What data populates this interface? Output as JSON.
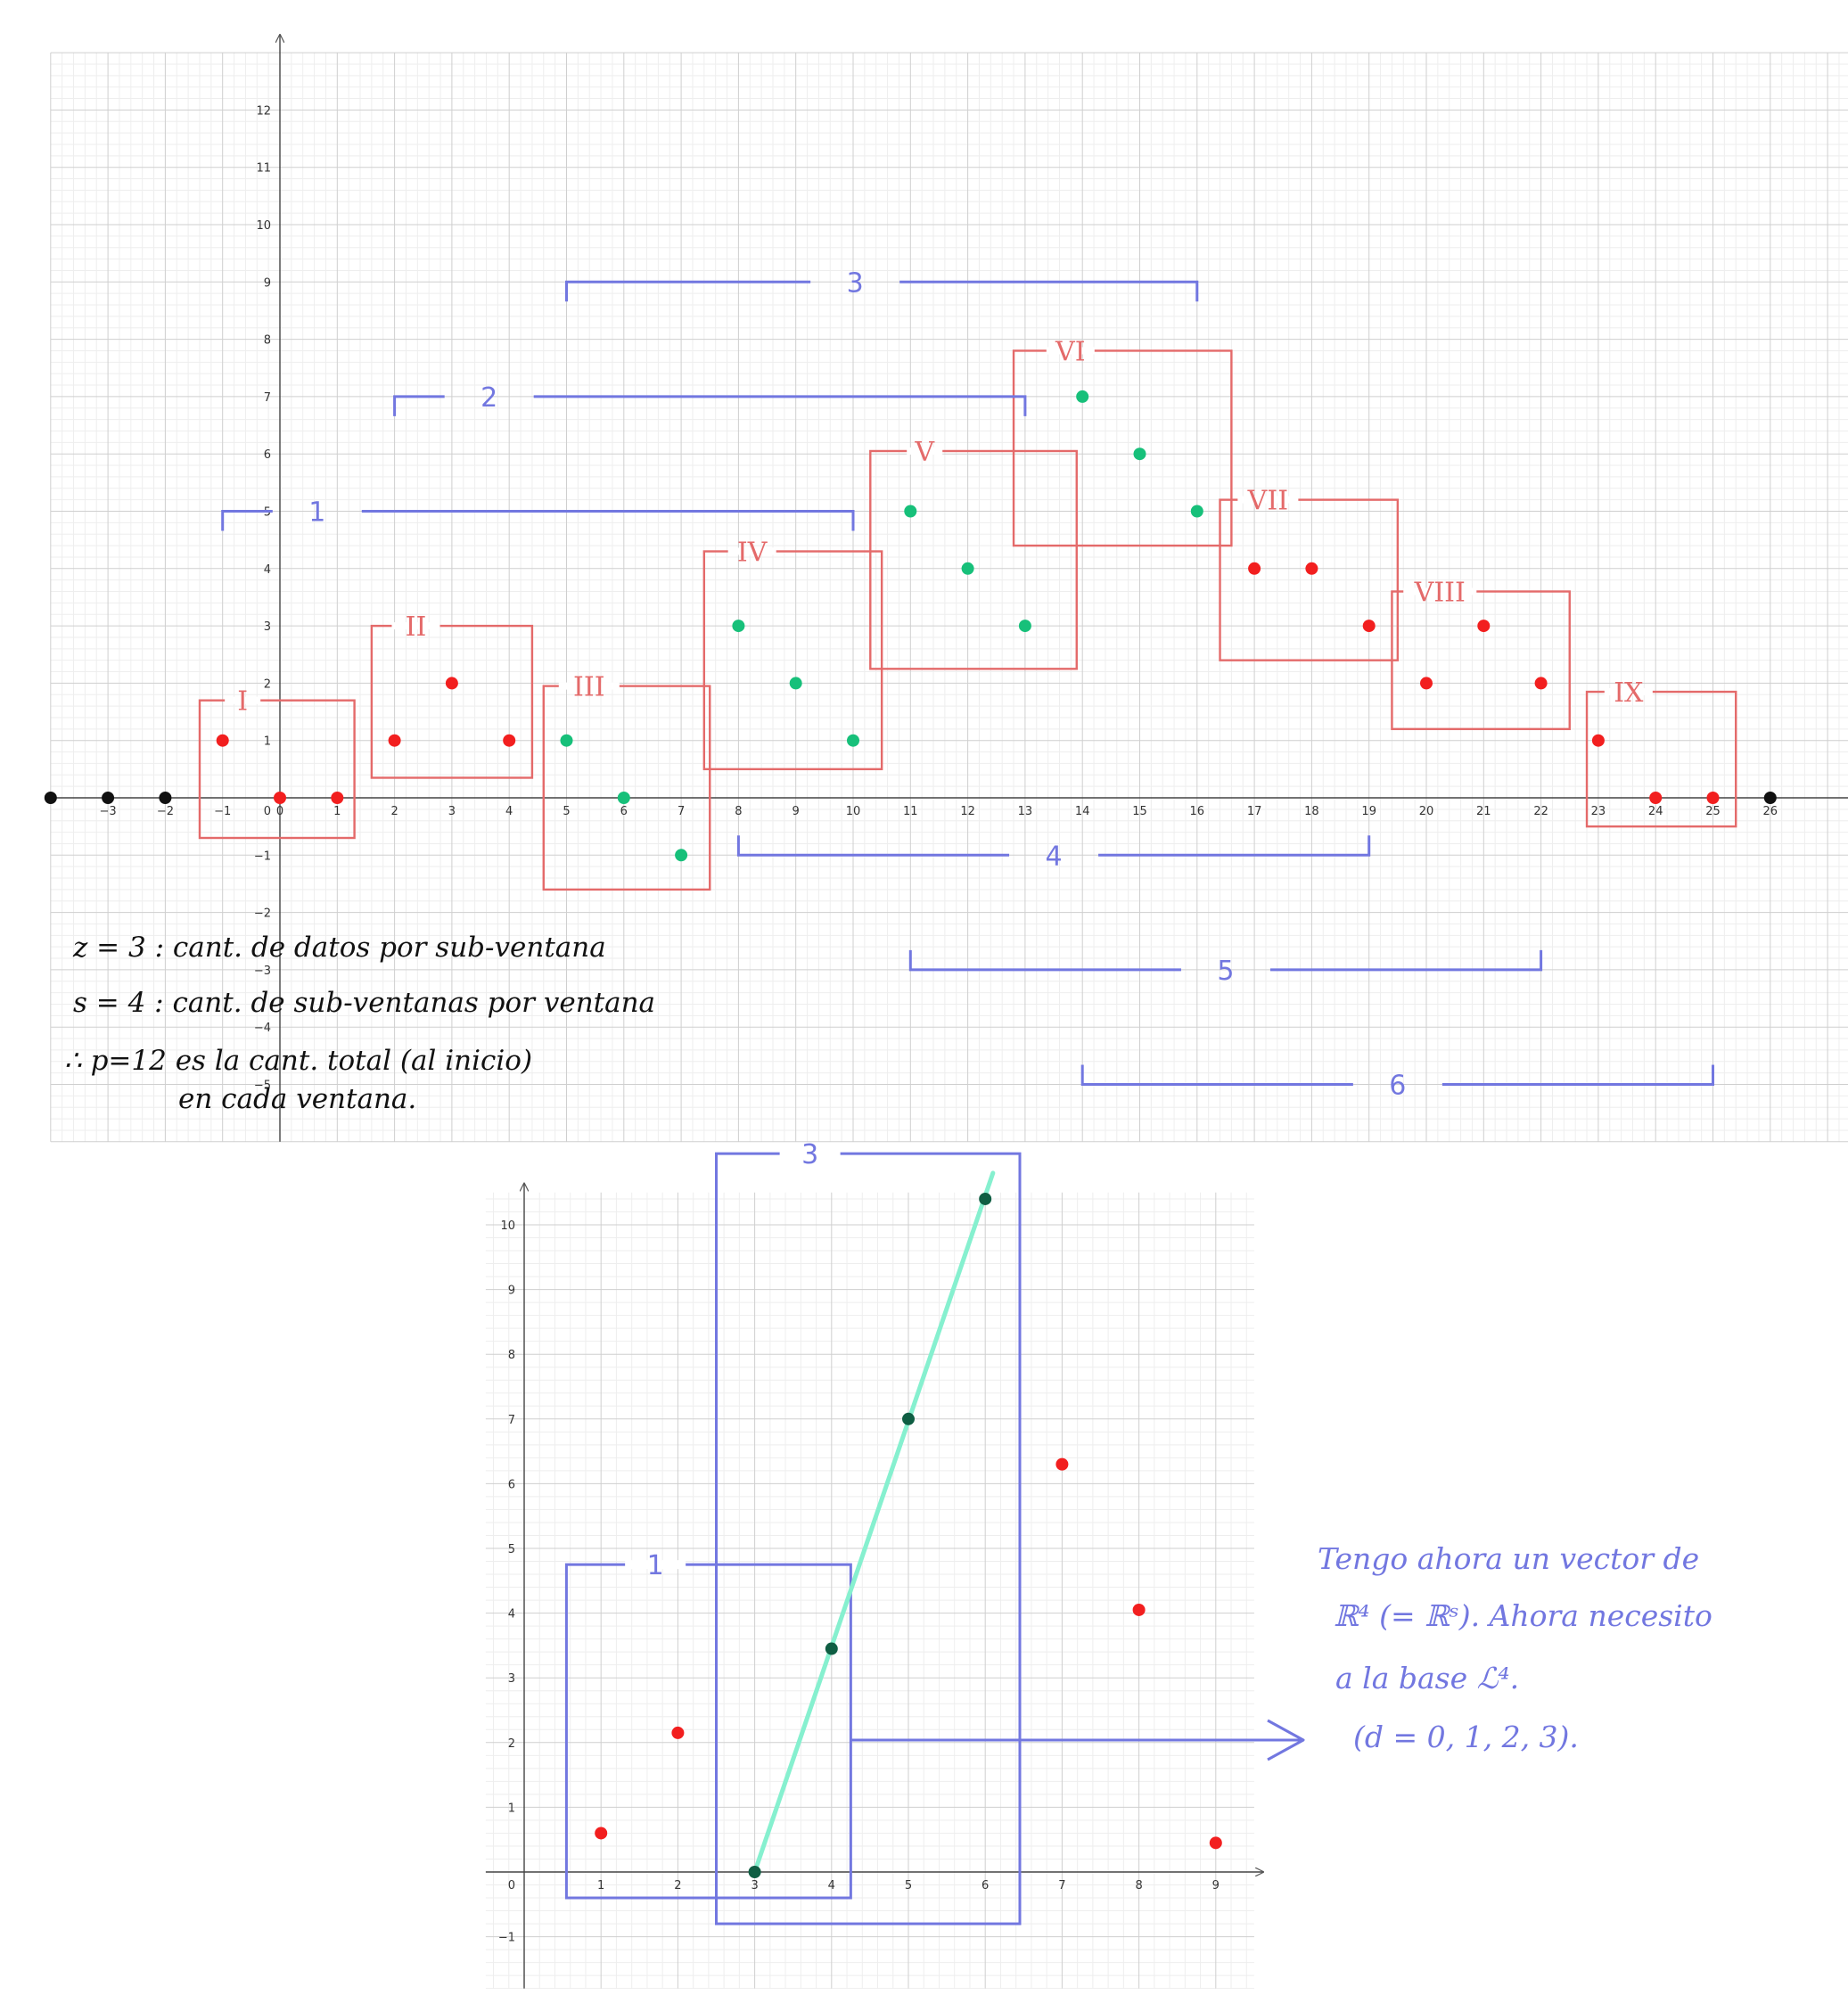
{
  "chart_data": [
    {
      "type": "scatter",
      "xlim": [
        -4,
        27.5
      ],
      "ylim": [
        -6,
        13
      ],
      "x_ticks": [
        -3,
        -2,
        -1,
        0,
        1,
        2,
        3,
        4,
        5,
        6,
        7,
        8,
        9,
        10,
        11,
        12,
        13,
        14,
        15,
        16,
        17,
        18,
        19,
        20,
        21,
        22,
        23,
        24,
        25,
        26
      ],
      "y_ticks": [
        -5,
        -4,
        -3,
        -2,
        -1,
        1,
        2,
        3,
        4,
        5,
        6,
        7,
        8,
        9,
        10,
        11,
        12
      ],
      "grid": true,
      "series": [
        {
          "color": "#111111",
          "points": [
            [
              -4,
              0
            ],
            [
              -3,
              0
            ],
            [
              -2,
              0
            ],
            [
              26,
              0
            ]
          ]
        },
        {
          "color": "#f21f1f",
          "points": [
            [
              -1,
              1
            ],
            [
              0,
              0
            ],
            [
              1,
              0
            ],
            [
              2,
              1
            ],
            [
              3,
              2
            ],
            [
              4,
              1
            ],
            [
              17,
              4
            ],
            [
              18,
              4
            ],
            [
              19,
              3
            ],
            [
              20,
              2
            ],
            [
              21,
              3
            ],
            [
              22,
              2
            ],
            [
              23,
              1
            ],
            [
              24,
              0
            ],
            [
              25,
              0
            ]
          ]
        },
        {
          "color": "#17c07a",
          "points": [
            [
              5,
              1
            ],
            [
              6,
              0
            ],
            [
              7,
              -1
            ],
            [
              8,
              3
            ],
            [
              9,
              2
            ],
            [
              10,
              1
            ],
            [
              11,
              5
            ],
            [
              12,
              4
            ],
            [
              13,
              3
            ],
            [
              14,
              7
            ],
            [
              15,
              6
            ],
            [
              16,
              5
            ]
          ]
        }
      ],
      "sub_windows": [
        {
          "label": "I",
          "x": [
            -1.4,
            1.3
          ],
          "y": [
            -0.7,
            1.7
          ]
        },
        {
          "label": "II",
          "x": [
            1.6,
            4.4
          ],
          "y": [
            0.35,
            3
          ]
        },
        {
          "label": "III",
          "x": [
            4.6,
            7.5
          ],
          "y": [
            -1.6,
            1.95
          ]
        },
        {
          "label": "IV",
          "x": [
            7.4,
            10.5
          ],
          "y": [
            0.5,
            4.3
          ]
        },
        {
          "label": "V",
          "x": [
            10.3,
            13.9
          ],
          "y": [
            2.25,
            6.05
          ]
        },
        {
          "label": "VI",
          "x": [
            12.8,
            16.6
          ],
          "y": [
            4.4,
            7.8
          ]
        },
        {
          "label": "VII",
          "x": [
            16.4,
            19.5
          ],
          "y": [
            2.4,
            5.2
          ]
        },
        {
          "label": "VIII",
          "x": [
            19.4,
            22.5
          ],
          "y": [
            1.2,
            3.6
          ]
        },
        {
          "label": "IX",
          "x": [
            22.8,
            25.4
          ],
          "y": [
            -0.5,
            1.85
          ]
        }
      ],
      "windows": [
        {
          "label": "1",
          "x": [
            -1,
            10
          ],
          "y": 5,
          "side": "down"
        },
        {
          "label": "2",
          "x": [
            2,
            13
          ],
          "y": 7,
          "side": "down"
        },
        {
          "label": "3",
          "x": [
            5,
            16
          ],
          "y": 9,
          "side": "down"
        },
        {
          "label": "4",
          "x": [
            8,
            19
          ],
          "y": -1,
          "side": "up"
        },
        {
          "label": "5",
          "x": [
            11,
            22
          ],
          "y": -3,
          "side": "up"
        },
        {
          "label": "6",
          "x": [
            14,
            25
          ],
          "y": -5,
          "side": "up"
        }
      ],
      "notes": [
        "z = 3 : cant. de datos por sub-ventana",
        "s = 4 : cant. de sub-ventanas por ventana",
        "∴ p=12 es la cant. total (al inicio)",
        "en cada ventana."
      ]
    },
    {
      "type": "scatter",
      "xlim": [
        -0.5,
        9.5
      ],
      "ylim": [
        -1.8,
        10.5
      ],
      "x_ticks": [
        1,
        2,
        3,
        4,
        5,
        6,
        7,
        8,
        9
      ],
      "y_ticks": [
        -1,
        1,
        2,
        3,
        4,
        5,
        6,
        7,
        8,
        9,
        10
      ],
      "origin_label": "0",
      "grid": true,
      "series": [
        {
          "color": "#f21f1f",
          "points": [
            [
              1,
              0.6
            ],
            [
              2,
              2.15
            ],
            [
              7,
              6.3
            ],
            [
              8,
              4.05
            ],
            [
              9,
              0.45
            ]
          ]
        },
        {
          "color": "#0f5e43",
          "points": [
            [
              3,
              0
            ],
            [
              4,
              3.45
            ],
            [
              5,
              7
            ],
            [
              6,
              10.4
            ]
          ]
        }
      ],
      "fit_line": {
        "color": "#86f0cf",
        "from": [
          3,
          0
        ],
        "to": [
          6.1,
          10.8
        ]
      },
      "boxes": [
        {
          "label": "1",
          "x": [
            0.55,
            4.25
          ],
          "y": [
            -0.4,
            4.75
          ]
        },
        {
          "label": "3",
          "x": [
            2.5,
            6.45
          ],
          "y": [
            -0.8,
            11.1
          ]
        }
      ],
      "note": [
        "Tengo ahora un vector de",
        "ℝ⁴ (= ℝˢ). Ahora necesito",
        "a la base ℒ⁴.",
        "(d = 0, 1, 2, 3)."
      ]
    }
  ]
}
